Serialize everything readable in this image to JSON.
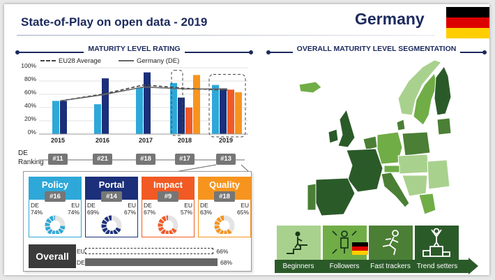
{
  "header": {
    "title": "State-of-Play on open data - 2019",
    "country": "Germany",
    "flag_colors": [
      "#000000",
      "#dd0000",
      "#ffce00"
    ]
  },
  "maturity_rating": {
    "section_title": "MATURITY LEVEL RATING",
    "legend": {
      "eu": "EU28 Average",
      "de": "Germany (DE)"
    },
    "ranking_label": [
      "DE",
      "Ranking"
    ],
    "rankings": [
      "#11",
      "#21",
      "#18",
      "#17",
      "#13"
    ]
  },
  "chart_data": {
    "type": "bar",
    "categories": [
      "2015",
      "2016",
      "2017",
      "2018",
      "2019"
    ],
    "series": [
      {
        "name": "Policy",
        "color": "#2ea8d8",
        "values": [
          50,
          45,
          70,
          77,
          74
        ]
      },
      {
        "name": "Portal",
        "color": "#1b2f7a",
        "values": [
          50,
          84,
          93,
          55,
          69
        ]
      },
      {
        "name": "Impact",
        "color": "#f15a24",
        "values": [
          null,
          null,
          null,
          40,
          67
        ]
      },
      {
        "name": "Quality",
        "color": "#f7941d",
        "values": [
          null,
          null,
          null,
          89,
          63
        ]
      }
    ],
    "line_series": [
      {
        "name": "EU28 Average",
        "style": "dashed",
        "values": [
          50,
          60,
          74,
          69,
          66
        ]
      },
      {
        "name": "Germany (DE)",
        "style": "solid",
        "values": [
          50,
          59,
          71,
          68,
          68
        ]
      }
    ],
    "yticks": [
      "0%",
      "20%",
      "40%",
      "60%",
      "80%",
      "100%"
    ],
    "ylim": [
      0,
      100
    ]
  },
  "cards": [
    {
      "name": "Policy",
      "rank": "#16",
      "de_label": "DE",
      "eu_label": "EU",
      "de": "74%",
      "eu": "74%",
      "de_value": 0.74,
      "color": "#2ea8d8"
    },
    {
      "name": "Portal",
      "rank": "#14",
      "de_label": "DE",
      "eu_label": "EU",
      "de": "69%",
      "eu": "67%",
      "de_value": 0.69,
      "color": "#1b2f7a"
    },
    {
      "name": "Impact",
      "rank": "#9",
      "de_label": "DE",
      "eu_label": "EU",
      "de": "67%",
      "eu": "57%",
      "de_value": 0.67,
      "color": "#f15a24"
    },
    {
      "name": "Quality",
      "rank": "#18",
      "de_label": "DE",
      "eu_label": "EU",
      "de": "63%",
      "eu": "65%",
      "de_value": 0.63,
      "color": "#f7941d"
    }
  ],
  "overall": {
    "label": "Overall",
    "eu_label": "EU",
    "eu": "66%",
    "eu_value": 0.66,
    "de_label": "DE",
    "de": "68%",
    "de_value": 0.68
  },
  "segmentation": {
    "section_title": "OVERALL MATURITY LEVEL SEGMENTATION",
    "segments": [
      {
        "label": "Beginners",
        "color": "#a9d18e"
      },
      {
        "label": "Followers",
        "color": "#70ad47"
      },
      {
        "label": "Fast trackers",
        "color": "#4b7f35"
      },
      {
        "label": "Trend setters",
        "color": "#2b5a29"
      }
    ]
  }
}
